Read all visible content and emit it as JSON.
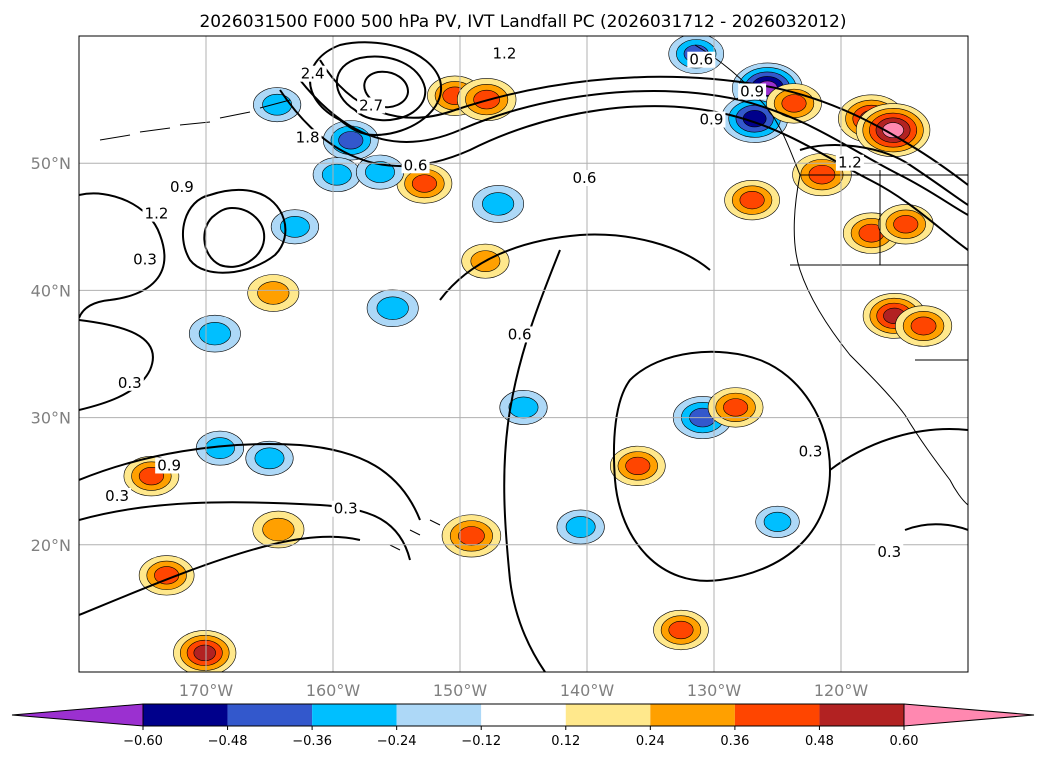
{
  "title": "2026031500 F000 500 hPa PV, IVT Landfall PC (2026031712 - 2026032012)",
  "map": {
    "lon_range": [
      -180,
      -110
    ],
    "lat_range": [
      10,
      60
    ],
    "lat_ticks": [
      {
        "value": 20,
        "label": "20°N"
      },
      {
        "value": 30,
        "label": "30°N"
      },
      {
        "value": 40,
        "label": "40°N"
      },
      {
        "value": 50,
        "label": "50°N"
      }
    ],
    "lon_ticks": [
      {
        "value": -170,
        "label": "170°W"
      },
      {
        "value": -160,
        "label": "160°W"
      },
      {
        "value": -150,
        "label": "150°W"
      },
      {
        "value": -140,
        "label": "140°W"
      },
      {
        "value": -130,
        "label": "130°W"
      },
      {
        "value": -120,
        "label": "120°W"
      }
    ],
    "gridlines": true,
    "line_color": "#000000"
  },
  "contour_labels": [
    {
      "text": "1.2",
      "lon": -146.5,
      "lat": 58.4
    },
    {
      "text": "2.4",
      "lon": -161.6,
      "lat": 56.8
    },
    {
      "text": "2.7",
      "lon": -157.0,
      "lat": 54.3
    },
    {
      "text": "1.8",
      "lon": -162.0,
      "lat": 51.8
    },
    {
      "text": "0.6",
      "lon": -131.0,
      "lat": 57.9
    },
    {
      "text": "0.9",
      "lon": -127.0,
      "lat": 55.4
    },
    {
      "text": "0.9",
      "lon": -130.2,
      "lat": 53.2
    },
    {
      "text": "0.6",
      "lon": -153.5,
      "lat": 49.6
    },
    {
      "text": "0.6",
      "lon": -140.2,
      "lat": 48.6
    },
    {
      "text": "0.9",
      "lon": -171.9,
      "lat": 47.9
    },
    {
      "text": "1.2",
      "lon": -173.9,
      "lat": 45.8
    },
    {
      "text": "1.2",
      "lon": -119.3,
      "lat": 49.8
    },
    {
      "text": "0.3",
      "lon": -174.8,
      "lat": 42.2
    },
    {
      "text": "0.6",
      "lon": -145.3,
      "lat": 36.3
    },
    {
      "text": "0.3",
      "lon": -176.0,
      "lat": 32.5
    },
    {
      "text": "0.9",
      "lon": -172.9,
      "lat": 26.0
    },
    {
      "text": "0.3",
      "lon": -177.0,
      "lat": 23.6
    },
    {
      "text": "0.3",
      "lon": -159.0,
      "lat": 22.6
    },
    {
      "text": "0.3",
      "lon": -122.4,
      "lat": 27.1
    },
    {
      "text": "0.3",
      "lon": -116.2,
      "lat": 19.2
    }
  ],
  "colorbar": {
    "ticks": [
      "−0.60",
      "−0.48",
      "−0.36",
      "−0.24",
      "−0.12",
      "0.12",
      "0.24",
      "0.36",
      "0.48",
      "0.60"
    ],
    "colors": [
      "#9b30d0",
      "#00008b",
      "#3358cc",
      "#00bfff",
      "#add8f7",
      "#ffffff",
      "#ffe88c",
      "#ffa000",
      "#ff4500",
      "#b22222",
      "#ff88b0"
    ],
    "extend": "both"
  },
  "anomalies": [
    {
      "lon": -125.8,
      "lat": 55.9,
      "value": -0.6
    },
    {
      "lon": -126.8,
      "lat": 53.5,
      "value": -0.55
    },
    {
      "lon": -131.4,
      "lat": 58.6,
      "value": -0.4
    },
    {
      "lon": -164.4,
      "lat": 54.6,
      "value": -0.3
    },
    {
      "lon": -158.6,
      "lat": 51.8,
      "value": -0.4
    },
    {
      "lon": -159.7,
      "lat": 49.1,
      "value": -0.3
    },
    {
      "lon": -150.4,
      "lat": 55.3,
      "value": 0.4
    },
    {
      "lon": -147.9,
      "lat": 55.0,
      "value": 0.45
    },
    {
      "lon": -152.8,
      "lat": 48.4,
      "value": 0.4
    },
    {
      "lon": -156.3,
      "lat": 49.3,
      "value": -0.3
    },
    {
      "lon": -147.0,
      "lat": 46.8,
      "value": -0.35
    },
    {
      "lon": -163.0,
      "lat": 45.0,
      "value": -0.3
    },
    {
      "lon": -164.7,
      "lat": 39.8,
      "value": 0.35
    },
    {
      "lon": -148.0,
      "lat": 42.3,
      "value": 0.3
    },
    {
      "lon": -155.3,
      "lat": 38.6,
      "value": -0.35
    },
    {
      "lon": -169.3,
      "lat": 36.6,
      "value": -0.35
    },
    {
      "lon": -145.0,
      "lat": 30.8,
      "value": -0.3
    },
    {
      "lon": -130.9,
      "lat": 30.0,
      "value": -0.45
    },
    {
      "lon": -128.3,
      "lat": 30.8,
      "value": 0.4
    },
    {
      "lon": -168.9,
      "lat": 27.6,
      "value": -0.3
    },
    {
      "lon": -165.0,
      "lat": 26.8,
      "value": -0.3
    },
    {
      "lon": -174.3,
      "lat": 25.4,
      "value": 0.4
    },
    {
      "lon": -164.3,
      "lat": 21.2,
      "value": 0.35
    },
    {
      "lon": -149.1,
      "lat": 20.7,
      "value": 0.45
    },
    {
      "lon": -136.0,
      "lat": 26.2,
      "value": 0.4
    },
    {
      "lon": -121.5,
      "lat": 49.1,
      "value": 0.45
    },
    {
      "lon": -117.6,
      "lat": 53.5,
      "value": 0.55
    },
    {
      "lon": -115.9,
      "lat": 52.6,
      "value": 0.65
    },
    {
      "lon": -117.6,
      "lat": 44.5,
      "value": 0.42
    },
    {
      "lon": -114.9,
      "lat": 45.2,
      "value": 0.4
    },
    {
      "lon": -115.8,
      "lat": 38.0,
      "value": 0.5
    },
    {
      "lon": -113.5,
      "lat": 37.2,
      "value": 0.42
    },
    {
      "lon": -127.0,
      "lat": 47.1,
      "value": 0.4
    },
    {
      "lon": -123.7,
      "lat": 54.7,
      "value": 0.4
    },
    {
      "lon": -132.6,
      "lat": 13.3,
      "value": 0.4
    },
    {
      "lon": -170.1,
      "lat": 11.5,
      "value": 0.5
    },
    {
      "lon": -173.1,
      "lat": 17.6,
      "value": 0.4
    },
    {
      "lon": -140.5,
      "lat": 21.4,
      "value": -0.3
    },
    {
      "lon": -125.0,
      "lat": 21.8,
      "value": -0.25
    }
  ]
}
